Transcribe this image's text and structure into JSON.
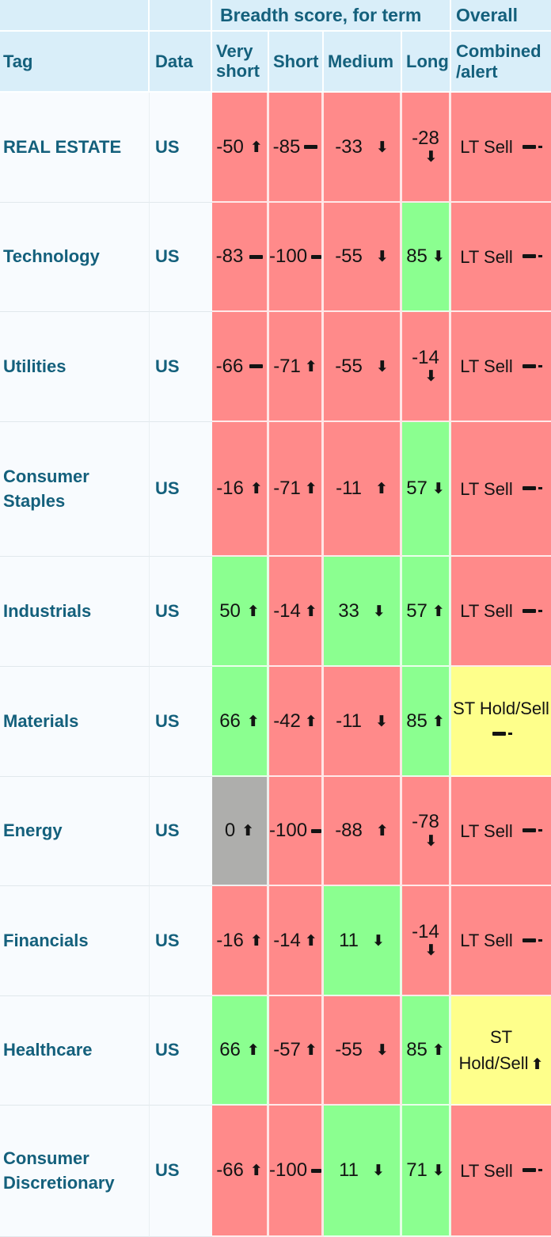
{
  "header": {
    "group_breadth": "Breadth score, for term",
    "group_overall": "Overall",
    "columns": {
      "tag": "Tag",
      "data": "Data",
      "very_short": "Very short",
      "short": "Short",
      "medium": "Medium",
      "long": "Long",
      "combined": "Combined\n/alert"
    }
  },
  "icons": {
    "up": "⬆",
    "down": "⬇",
    "flat": "▬"
  },
  "colors": {
    "red": "#ff8a8a",
    "green": "#8bff90",
    "yellow": "#feff8b",
    "gray": "#aeaeac",
    "header_bg": "#d9eef9",
    "label_bg": "#f8fbfe",
    "teal_text": "#14607c"
  },
  "rows": [
    {
      "tag": "REAL ESTATE",
      "data": "US",
      "cells": [
        {
          "value": "-50",
          "trend": "up",
          "color": "red"
        },
        {
          "value": "-85",
          "trend": "flat",
          "color": "red"
        },
        {
          "value": "-33",
          "trend": "down",
          "color": "red"
        },
        {
          "value": "-28",
          "trend": "down",
          "color": "red",
          "wrap": true
        }
      ],
      "overall": {
        "label": "LT Sell",
        "trend": "flat",
        "color": "red"
      }
    },
    {
      "tag": "Technology",
      "data": "US",
      "cells": [
        {
          "value": "-83",
          "trend": "flat",
          "color": "red"
        },
        {
          "value": "-100",
          "trend": "flat",
          "color": "red"
        },
        {
          "value": "-55",
          "trend": "down",
          "color": "red"
        },
        {
          "value": "85",
          "trend": "down",
          "color": "green"
        }
      ],
      "overall": {
        "label": "LT Sell",
        "trend": "flat",
        "color": "red"
      }
    },
    {
      "tag": "Utilities",
      "data": "US",
      "cells": [
        {
          "value": "-66",
          "trend": "flat",
          "color": "red"
        },
        {
          "value": "-71",
          "trend": "up",
          "color": "red"
        },
        {
          "value": "-55",
          "trend": "down",
          "color": "red"
        },
        {
          "value": "-14",
          "trend": "down",
          "color": "red",
          "wrap": true
        }
      ],
      "overall": {
        "label": "LT Sell",
        "trend": "flat",
        "color": "red"
      }
    },
    {
      "tag": "Consumer Staples",
      "data": "US",
      "cells": [
        {
          "value": "-16",
          "trend": "up",
          "color": "red"
        },
        {
          "value": "-71",
          "trend": "up",
          "color": "red"
        },
        {
          "value": "-11",
          "trend": "up",
          "color": "red"
        },
        {
          "value": "57",
          "trend": "down",
          "color": "green"
        }
      ],
      "overall": {
        "label": "LT Sell",
        "trend": "flat",
        "color": "red"
      }
    },
    {
      "tag": "Industrials",
      "data": "US",
      "cells": [
        {
          "value": "50",
          "trend": "up",
          "color": "green"
        },
        {
          "value": "-14",
          "trend": "up",
          "color": "red"
        },
        {
          "value": "33",
          "trend": "down",
          "color": "green"
        },
        {
          "value": "57",
          "trend": "up",
          "color": "green"
        }
      ],
      "overall": {
        "label": "LT Sell",
        "trend": "flat",
        "color": "red"
      }
    },
    {
      "tag": "Materials",
      "data": "US",
      "cells": [
        {
          "value": "66",
          "trend": "up",
          "color": "green"
        },
        {
          "value": "-42",
          "trend": "up",
          "color": "red"
        },
        {
          "value": "-11",
          "trend": "down",
          "color": "red"
        },
        {
          "value": "85",
          "trend": "up",
          "color": "green"
        }
      ],
      "overall": {
        "label": "ST Hold/Sell",
        "trend": "flat",
        "color": "yellow"
      }
    },
    {
      "tag": "Energy",
      "data": "US",
      "cells": [
        {
          "value": "0",
          "trend": "up",
          "color": "gray"
        },
        {
          "value": "-100",
          "trend": "flat",
          "color": "red"
        },
        {
          "value": "-88",
          "trend": "up",
          "color": "red"
        },
        {
          "value": "-78",
          "trend": "down",
          "color": "red",
          "wrap": true
        }
      ],
      "overall": {
        "label": "LT Sell",
        "trend": "flat",
        "color": "red"
      }
    },
    {
      "tag": "Financials",
      "data": "US",
      "cells": [
        {
          "value": "-16",
          "trend": "up",
          "color": "red"
        },
        {
          "value": "-14",
          "trend": "up",
          "color": "red"
        },
        {
          "value": "11",
          "trend": "down",
          "color": "green"
        },
        {
          "value": "-14",
          "trend": "down",
          "color": "red",
          "wrap": true
        }
      ],
      "overall": {
        "label": "LT Sell",
        "trend": "flat",
        "color": "red"
      }
    },
    {
      "tag": "Healthcare",
      "data": "US",
      "cells": [
        {
          "value": "66",
          "trend": "up",
          "color": "green"
        },
        {
          "value": "-57",
          "trend": "up",
          "color": "red"
        },
        {
          "value": "-55",
          "trend": "down",
          "color": "red"
        },
        {
          "value": "85",
          "trend": "up",
          "color": "green"
        }
      ],
      "overall": {
        "label": "ST Hold/Sell",
        "trend": "up",
        "color": "yellow"
      }
    },
    {
      "tag": "Consumer Discretionary",
      "data": "US",
      "cells": [
        {
          "value": "-66",
          "trend": "up",
          "color": "red"
        },
        {
          "value": "-100",
          "trend": "flat",
          "color": "red"
        },
        {
          "value": "11",
          "trend": "down",
          "color": "green"
        },
        {
          "value": "71",
          "trend": "down",
          "color": "green"
        }
      ],
      "overall": {
        "label": "LT Sell",
        "trend": "flat",
        "color": "red"
      }
    }
  ]
}
